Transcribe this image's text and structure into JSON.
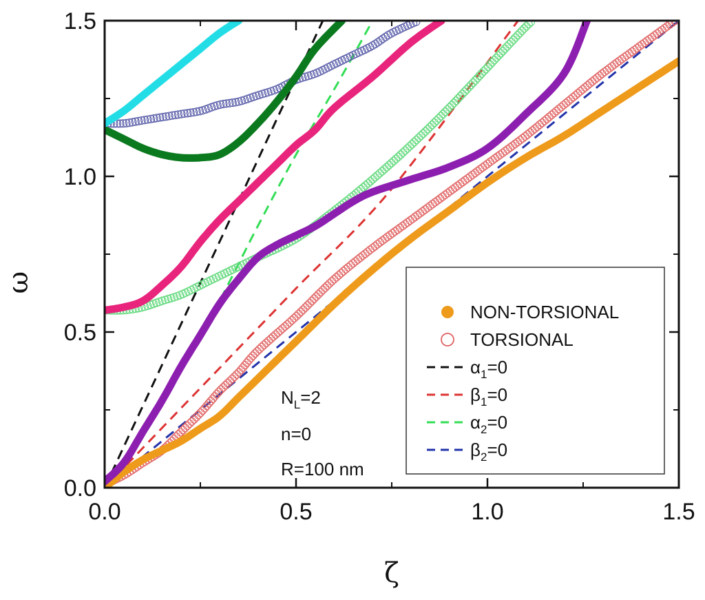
{
  "chart_data": {
    "type": "line",
    "xlabel": "ζ",
    "ylabel": "ω",
    "xlim": [
      0,
      1.5
    ],
    "ylim": [
      0,
      1.5
    ],
    "xticks": [
      "0.0",
      "0.5",
      "1.0",
      "1.5"
    ],
    "yticks": [
      "0.0",
      "0.5",
      "1.0",
      "1.5"
    ],
    "grid": false,
    "legend_position": "bottom-right",
    "legend": [
      {
        "label": "NON-TORSIONAL",
        "marker": "filled-circle",
        "color": "#ee9a1b"
      },
      {
        "label": "TORSIONAL",
        "marker": "open-circle",
        "color": "#e06060"
      },
      {
        "label": "α",
        "sub": "1",
        "suffix": "=0",
        "marker": "dashed-line",
        "color": "#111111"
      },
      {
        "label": "β",
        "sub": "1",
        "suffix": "=0",
        "marker": "dashed-line",
        "color": "#dd3333"
      },
      {
        "label": "α",
        "sub": "2",
        "suffix": "=0",
        "marker": "dashed-line",
        "color": "#33dd55"
      },
      {
        "label": "β",
        "sub": "2",
        "suffix": "=0",
        "marker": "dashed-line",
        "color": "#2233aa"
      }
    ],
    "annotation": {
      "line1_main": "N",
      "line1_sub": "L",
      "line1_suffix": "=2",
      "line2": "n=0",
      "line3": "R=100 nm"
    },
    "series": [
      {
        "kind": "non-torsional",
        "color": "#ee9a1b",
        "points": [
          [
            0,
            0
          ],
          [
            0.05,
            0.05
          ],
          [
            0.1,
            0.09
          ],
          [
            0.15,
            0.12
          ],
          [
            0.2,
            0.15
          ],
          [
            0.25,
            0.19
          ],
          [
            0.3,
            0.23
          ],
          [
            0.35,
            0.29
          ],
          [
            0.4,
            0.35
          ],
          [
            0.5,
            0.47
          ],
          [
            0.6,
            0.59
          ],
          [
            0.7,
            0.7
          ],
          [
            0.8,
            0.8
          ],
          [
            0.9,
            0.89
          ],
          [
            1.0,
            0.98
          ],
          [
            1.1,
            1.06
          ],
          [
            1.2,
            1.13
          ],
          [
            1.3,
            1.21
          ],
          [
            1.4,
            1.29
          ],
          [
            1.5,
            1.37
          ]
        ]
      },
      {
        "kind": "non-torsional",
        "color": "#8d1fb0",
        "points": [
          [
            0,
            0.02
          ],
          [
            0.05,
            0.08
          ],
          [
            0.1,
            0.18
          ],
          [
            0.15,
            0.28
          ],
          [
            0.2,
            0.39
          ],
          [
            0.25,
            0.49
          ],
          [
            0.3,
            0.59
          ],
          [
            0.35,
            0.67
          ],
          [
            0.4,
            0.74
          ],
          [
            0.45,
            0.78
          ],
          [
            0.5,
            0.81
          ],
          [
            0.55,
            0.84
          ],
          [
            0.6,
            0.88
          ],
          [
            0.65,
            0.92
          ],
          [
            0.7,
            0.95
          ],
          [
            0.8,
            0.99
          ],
          [
            0.9,
            1.03
          ],
          [
            1.0,
            1.09
          ],
          [
            1.1,
            1.2
          ],
          [
            1.2,
            1.33
          ],
          [
            1.26,
            1.5
          ]
        ]
      },
      {
        "kind": "non-torsional",
        "color": "#e8247c",
        "points": [
          [
            0,
            0.57
          ],
          [
            0.05,
            0.58
          ],
          [
            0.1,
            0.6
          ],
          [
            0.15,
            0.65
          ],
          [
            0.2,
            0.71
          ],
          [
            0.25,
            0.79
          ],
          [
            0.3,
            0.86
          ],
          [
            0.35,
            0.92
          ],
          [
            0.4,
            0.98
          ],
          [
            0.45,
            1.04
          ],
          [
            0.5,
            1.1
          ],
          [
            0.55,
            1.15
          ],
          [
            0.6,
            1.22
          ],
          [
            0.7,
            1.32
          ],
          [
            0.8,
            1.43
          ],
          [
            0.88,
            1.5
          ]
        ]
      },
      {
        "kind": "non-torsional",
        "color": "#0b7a1f",
        "points": [
          [
            0,
            1.15
          ],
          [
            0.05,
            1.12
          ],
          [
            0.1,
            1.09
          ],
          [
            0.15,
            1.07
          ],
          [
            0.2,
            1.06
          ],
          [
            0.25,
            1.06
          ],
          [
            0.3,
            1.07
          ],
          [
            0.35,
            1.11
          ],
          [
            0.4,
            1.17
          ],
          [
            0.45,
            1.24
          ],
          [
            0.5,
            1.32
          ],
          [
            0.55,
            1.41
          ],
          [
            0.62,
            1.5
          ]
        ]
      },
      {
        "kind": "non-torsional",
        "color": "#22dde6",
        "points": [
          [
            0,
            1.17
          ],
          [
            0.05,
            1.21
          ],
          [
            0.1,
            1.26
          ],
          [
            0.15,
            1.31
          ],
          [
            0.2,
            1.36
          ],
          [
            0.25,
            1.41
          ],
          [
            0.3,
            1.46
          ],
          [
            0.35,
            1.5
          ]
        ]
      },
      {
        "kind": "torsional",
        "color": "#e06060",
        "points": [
          [
            0,
            0.01
          ],
          [
            0.05,
            0.04
          ],
          [
            0.1,
            0.08
          ],
          [
            0.15,
            0.12
          ],
          [
            0.2,
            0.18
          ],
          [
            0.25,
            0.24
          ],
          [
            0.3,
            0.31
          ],
          [
            0.35,
            0.37
          ],
          [
            0.4,
            0.44
          ],
          [
            0.5,
            0.55
          ],
          [
            0.6,
            0.67
          ],
          [
            0.7,
            0.77
          ],
          [
            0.8,
            0.86
          ],
          [
            0.9,
            0.95
          ],
          [
            1.0,
            1.04
          ],
          [
            1.1,
            1.13
          ],
          [
            1.2,
            1.23
          ],
          [
            1.3,
            1.33
          ],
          [
            1.4,
            1.42
          ],
          [
            1.49,
            1.5
          ]
        ]
      },
      {
        "kind": "torsional",
        "color": "#5fd87a",
        "points": [
          [
            0,
            0.57
          ],
          [
            0.05,
            0.57
          ],
          [
            0.1,
            0.58
          ],
          [
            0.15,
            0.6
          ],
          [
            0.2,
            0.62
          ],
          [
            0.25,
            0.65
          ],
          [
            0.3,
            0.68
          ],
          [
            0.35,
            0.71
          ],
          [
            0.4,
            0.74
          ],
          [
            0.5,
            0.8
          ],
          [
            0.6,
            0.89
          ],
          [
            0.7,
            0.99
          ],
          [
            0.8,
            1.1
          ],
          [
            0.9,
            1.22
          ],
          [
            1.0,
            1.35
          ],
          [
            1.1,
            1.48
          ],
          [
            1.12,
            1.5
          ]
        ]
      },
      {
        "kind": "torsional",
        "color": "#5a5ea8",
        "points": [
          [
            0,
            1.17
          ],
          [
            0.05,
            1.17
          ],
          [
            0.1,
            1.18
          ],
          [
            0.15,
            1.19
          ],
          [
            0.2,
            1.2
          ],
          [
            0.25,
            1.21
          ],
          [
            0.3,
            1.23
          ],
          [
            0.35,
            1.24
          ],
          [
            0.4,
            1.26
          ],
          [
            0.45,
            1.28
          ],
          [
            0.5,
            1.31
          ],
          [
            0.55,
            1.33
          ],
          [
            0.6,
            1.36
          ],
          [
            0.65,
            1.39
          ],
          [
            0.7,
            1.42
          ],
          [
            0.75,
            1.46
          ],
          [
            0.82,
            1.5
          ]
        ]
      },
      {
        "kind": "dashed",
        "color": "#111111",
        "points": [
          [
            0,
            0
          ],
          [
            0.57,
            1.5
          ]
        ]
      },
      {
        "kind": "dashed",
        "color": "#dd3333",
        "points": [
          [
            0,
            0
          ],
          [
            0.25,
            0.32
          ],
          [
            0.5,
            0.64
          ],
          [
            0.75,
            0.96
          ],
          [
            1.08,
            1.5
          ]
        ]
      },
      {
        "kind": "dashed",
        "color": "#33dd55",
        "points": [
          [
            0,
            0
          ],
          [
            0.1,
            0.18
          ],
          [
            0.2,
            0.38
          ],
          [
            0.3,
            0.6
          ],
          [
            0.4,
            0.84
          ],
          [
            0.5,
            1.07
          ],
          [
            0.6,
            1.28
          ],
          [
            0.7,
            1.5
          ]
        ]
      },
      {
        "kind": "dashed",
        "color": "#2233aa",
        "points": [
          [
            0,
            0
          ],
          [
            0.5,
            0.5
          ],
          [
            1.0,
            1.0
          ],
          [
            1.5,
            1.5
          ]
        ]
      }
    ]
  }
}
